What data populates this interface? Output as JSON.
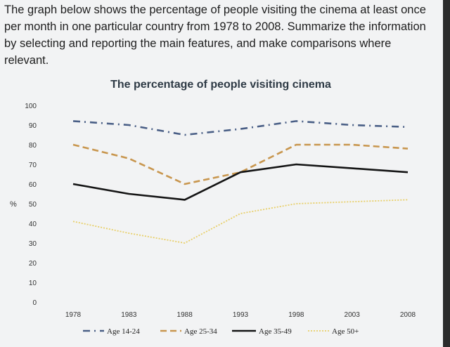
{
  "prompt": {
    "line1": "The graph below shows the percentage of people visiting the cinema at least once",
    "line2": "per month in one particular country from 1978 to 2008. Summarize the information",
    "line3": "by selecting and reporting the main features, and make comparisons where",
    "line4": "relevant."
  },
  "chart_data": {
    "type": "line",
    "title": "The percentage of people visiting cinema",
    "ylabel": "%",
    "xlabel": "",
    "x": [
      "1978",
      "1983",
      "1988",
      "1993",
      "1998",
      "2003",
      "2008"
    ],
    "ylim": [
      0,
      100
    ],
    "yticks": [
      0,
      10,
      20,
      30,
      40,
      50,
      60,
      70,
      80,
      90,
      100
    ],
    "grid": false,
    "legend_position": "bottom",
    "series": [
      {
        "name": "Age 14-24",
        "values": [
          92,
          90,
          85,
          88,
          92,
          90,
          89
        ],
        "color": "#4a5f86",
        "style": "dash-dot"
      },
      {
        "name": "Age 25-34",
        "values": [
          80,
          73,
          60,
          66,
          80,
          80,
          78
        ],
        "color": "#c8964e",
        "style": "dashed"
      },
      {
        "name": "Age 35-49",
        "values": [
          60,
          55,
          52,
          66,
          70,
          68,
          66
        ],
        "color": "#141414",
        "style": "solid"
      },
      {
        "name": "Age 50+",
        "values": [
          41,
          35,
          30,
          45,
          50,
          51,
          52
        ],
        "color": "#e8cf68",
        "style": "dotted"
      }
    ]
  }
}
